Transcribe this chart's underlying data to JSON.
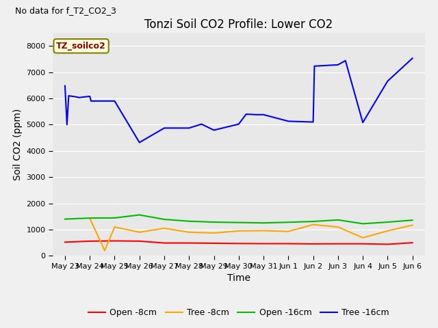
{
  "title": "Tonzi Soil CO2 Profile: Lower CO2",
  "subtitle": "No data for f_T2_CO2_3",
  "xlabel": "Time",
  "ylabel": "Soil CO2 (ppm)",
  "inset_label": "TZ_soilco2",
  "ylim": [
    0,
    8500
  ],
  "yticks": [
    0,
    1000,
    2000,
    3000,
    4000,
    5000,
    6000,
    7000,
    8000
  ],
  "x_labels": [
    "May 23",
    "May 24",
    "May 25",
    "May 26",
    "May 27",
    "May 28",
    "May 29",
    "May 30",
    "May 31",
    "Jun 1",
    "Jun 2",
    "Jun 3",
    "Jun 4",
    "Jun 5",
    "Jun 6"
  ],
  "open_8cm_x": [
    0,
    1,
    2,
    3,
    4,
    5,
    6,
    7,
    8,
    9,
    10,
    11,
    12,
    13,
    14
  ],
  "open_8cm_y": [
    520,
    560,
    570,
    560,
    490,
    490,
    480,
    470,
    465,
    465,
    455,
    460,
    460,
    440,
    500
  ],
  "tree_8cm_x": [
    1,
    1.6,
    2,
    3,
    4,
    5,
    6,
    7,
    8,
    9,
    10,
    11,
    12,
    13,
    14
  ],
  "tree_8cm_y": [
    1430,
    200,
    1100,
    900,
    1050,
    900,
    870,
    950,
    960,
    930,
    1190,
    1100,
    690,
    950,
    1170
  ],
  "open_16cm_x": [
    0,
    1,
    2,
    3,
    4,
    5,
    6,
    7,
    8,
    9,
    10,
    11,
    12,
    13,
    14
  ],
  "open_16cm_y": [
    1400,
    1440,
    1445,
    1560,
    1390,
    1320,
    1285,
    1270,
    1255,
    1280,
    1310,
    1370,
    1225,
    1285,
    1360
  ],
  "tree_16cm_x": [
    0,
    0.08,
    0.15,
    0.3,
    0.5,
    0.55,
    1,
    1.05,
    2,
    3,
    4,
    5,
    5.5,
    6,
    7,
    7.3,
    7.7,
    8,
    9,
    10,
    10.05,
    11,
    11.3,
    12,
    13,
    14
  ],
  "tree_16cm_y": [
    6480,
    5000,
    6100,
    6080,
    6050,
    6030,
    6080,
    5900,
    5900,
    4320,
    4870,
    4870,
    5020,
    4790,
    5020,
    5400,
    5380,
    5380,
    5130,
    5100,
    7230,
    7280,
    7440,
    5080,
    6660,
    7530
  ],
  "open_8cm_color": "#ff0000",
  "tree_8cm_color": "#ffa500",
  "open_16cm_color": "#00bb00",
  "tree_16cm_color": "#0000ff",
  "bg_color": "#e8e8e8",
  "fig_bg_color": "#f0f0f0",
  "legend_entries": [
    "Open -8cm",
    "Tree -8cm",
    "Open -16cm",
    "Tree -16cm"
  ],
  "title_fontsize": 12,
  "label_fontsize": 10,
  "tick_fontsize": 8,
  "legend_fontsize": 9
}
